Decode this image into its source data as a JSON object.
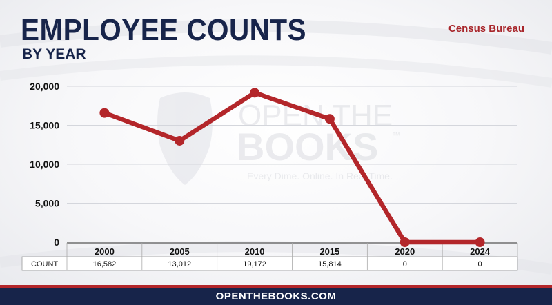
{
  "header": {
    "title": "EMPLOYEE COUNTS",
    "subtitle": "BY YEAR",
    "source": "Census Bureau"
  },
  "watermark": {
    "line1": "OPEN THE",
    "line2": "BOOKS",
    "tm": "™",
    "tagline": "Every Dime. Online. In Real Time."
  },
  "footer": {
    "text": "OPENTHEBOOKS.COM"
  },
  "colors": {
    "line": "#b3262a",
    "navy": "#17244a",
    "accent": "#a8262b"
  },
  "chart_data": {
    "type": "line",
    "categories": [
      "2000",
      "2005",
      "2010",
      "2015",
      "2020",
      "2024"
    ],
    "series": [
      {
        "values": [
          16582,
          13012,
          19172,
          15814,
          0,
          0
        ]
      }
    ],
    "ylim": [
      0,
      20000
    ],
    "yticks": [
      0,
      5000,
      10000,
      15000,
      20000
    ],
    "ytick_labels": [
      "0",
      "5,000",
      "10,000",
      "15,000",
      "20,000"
    ],
    "table": {
      "row_label": "COUNT",
      "values": [
        "16,582",
        "13,012",
        "19,172",
        "15,814",
        "0",
        "0"
      ]
    },
    "grid": true,
    "legend": "none"
  }
}
